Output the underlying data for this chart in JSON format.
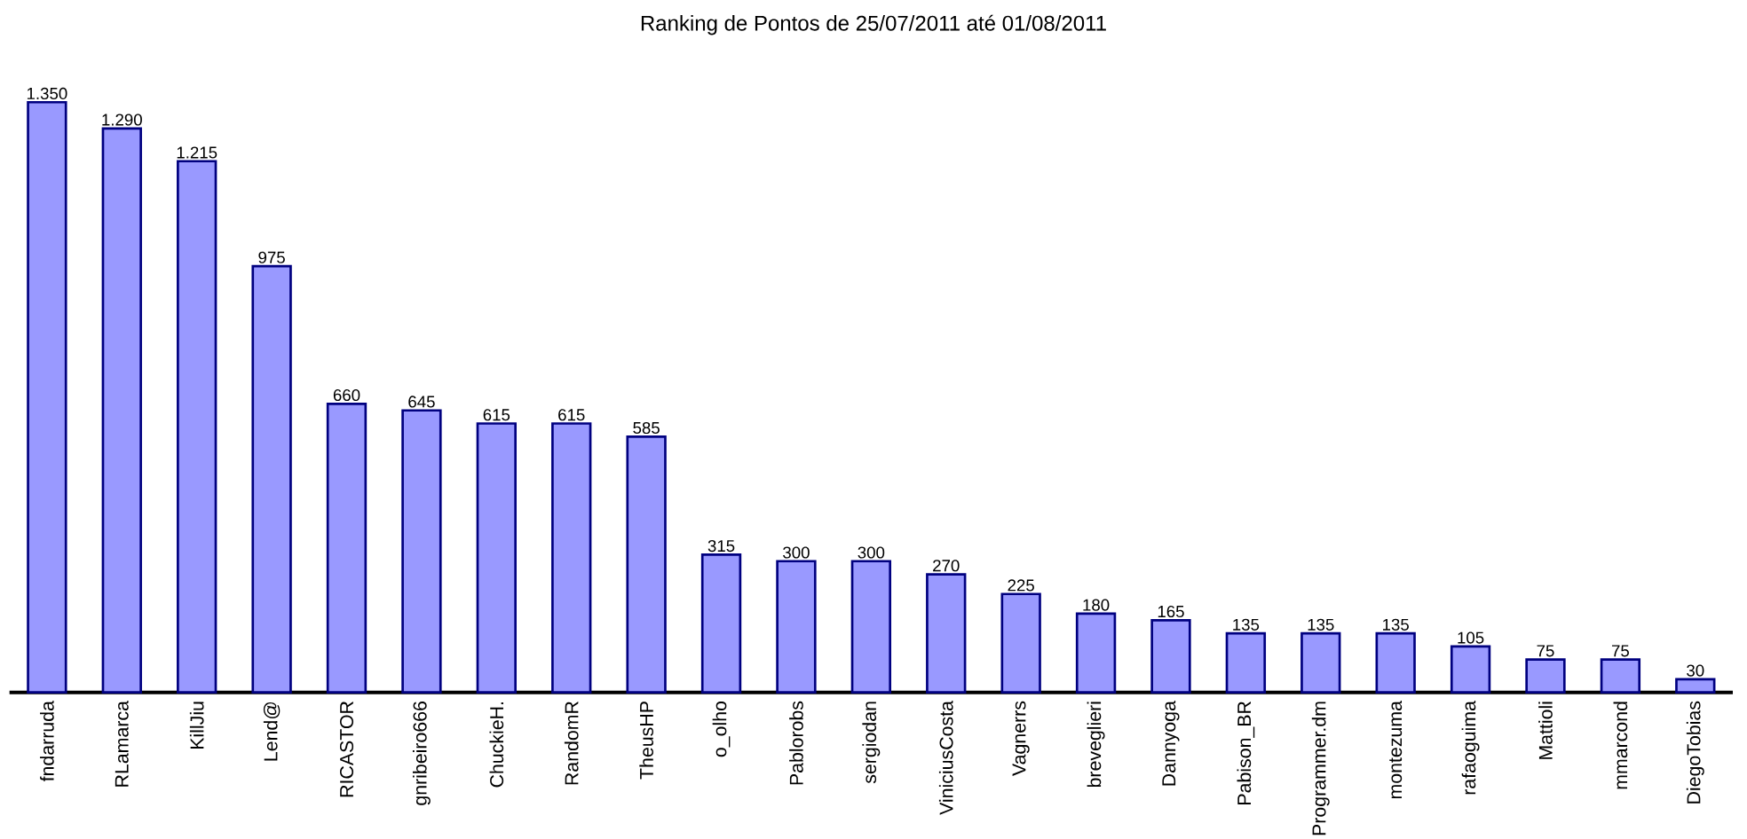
{
  "chart_data": {
    "type": "bar",
    "title": "Ranking de Pontos de 25/07/2011 até 01/08/2011",
    "categories": [
      "fndarruda",
      "RLamarca",
      "KillJiu",
      "Lend@",
      "RICASTOR",
      "gnribeiro666",
      "ChuckieH.",
      "RandomR",
      "TheusHP",
      "o_olho",
      "Pablorobs",
      "sergiodan",
      "ViniciusCosta",
      "Vagnerrs",
      "breveglieri",
      "Dannyoga",
      "Pabison_BR",
      "Programmer.dm",
      "montezuma",
      "rafaoguima",
      "Mattioli",
      "mmarcond",
      "DiegoTobias"
    ],
    "values": [
      1350,
      1290,
      1215,
      975,
      660,
      645,
      615,
      615,
      585,
      315,
      300,
      300,
      270,
      225,
      180,
      165,
      135,
      135,
      135,
      105,
      75,
      75,
      30
    ],
    "value_labels": [
      "1.350",
      "1.290",
      "1.215",
      "975",
      "660",
      "645",
      "615",
      "615",
      "585",
      "315",
      "300",
      "300",
      "270",
      "225",
      "180",
      "165",
      "135",
      "135",
      "135",
      "105",
      "75",
      "75",
      "30"
    ],
    "color": "#9999ff"
  }
}
